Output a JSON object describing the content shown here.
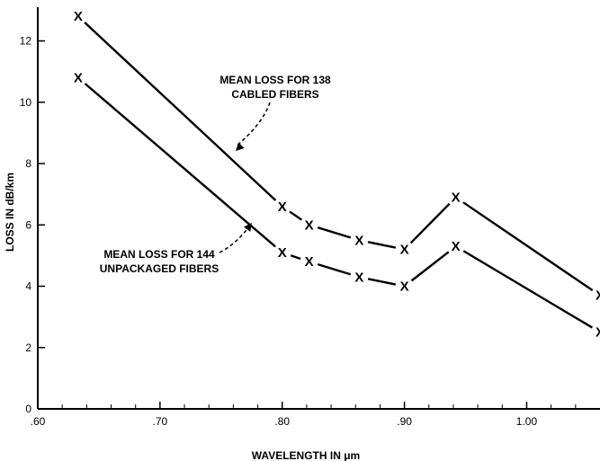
{
  "chart_data": {
    "type": "line",
    "xlabel": "WAVELENGTH IN μm",
    "ylabel": "LOSS IN dB/km",
    "xlim": [
      0.6,
      1.06
    ],
    "ylim": [
      0,
      13.1
    ],
    "x_ticks": [
      0.6,
      0.7,
      0.8,
      0.9,
      1.0
    ],
    "x_tick_labels": [
      ".60",
      ".70",
      ".80",
      ".90",
      "1.00"
    ],
    "y_ticks": [
      0,
      2,
      4,
      6,
      8,
      10,
      12
    ],
    "y_tick_labels": [
      "0",
      "2",
      "4",
      "6",
      "8",
      "10",
      "12"
    ],
    "grid": false,
    "marker": "X",
    "series": [
      {
        "id": "cabled",
        "x": [
          0.633,
          0.8,
          0.822,
          0.863,
          0.9,
          0.942,
          1.06
        ],
        "y": [
          12.8,
          6.6,
          6.0,
          5.5,
          5.2,
          6.9,
          3.7
        ]
      },
      {
        "id": "unpackaged",
        "x": [
          0.633,
          0.8,
          0.822,
          0.863,
          0.9,
          0.942,
          1.06
        ],
        "y": [
          10.8,
          5.1,
          4.8,
          4.3,
          4.0,
          5.3,
          2.5
        ]
      }
    ],
    "annotations": [
      {
        "lines": [
          "MEAN LOSS FOR 138",
          "CABLED FIBERS"
        ],
        "series": "cabled",
        "arrow_to": [
          0.758,
          8.5
        ]
      },
      {
        "lines": [
          "MEAN LOSS FOR 144",
          "UNPACKAGED FIBERS"
        ],
        "series": "unpackaged",
        "arrow_to": [
          0.775,
          6.1
        ]
      }
    ]
  }
}
